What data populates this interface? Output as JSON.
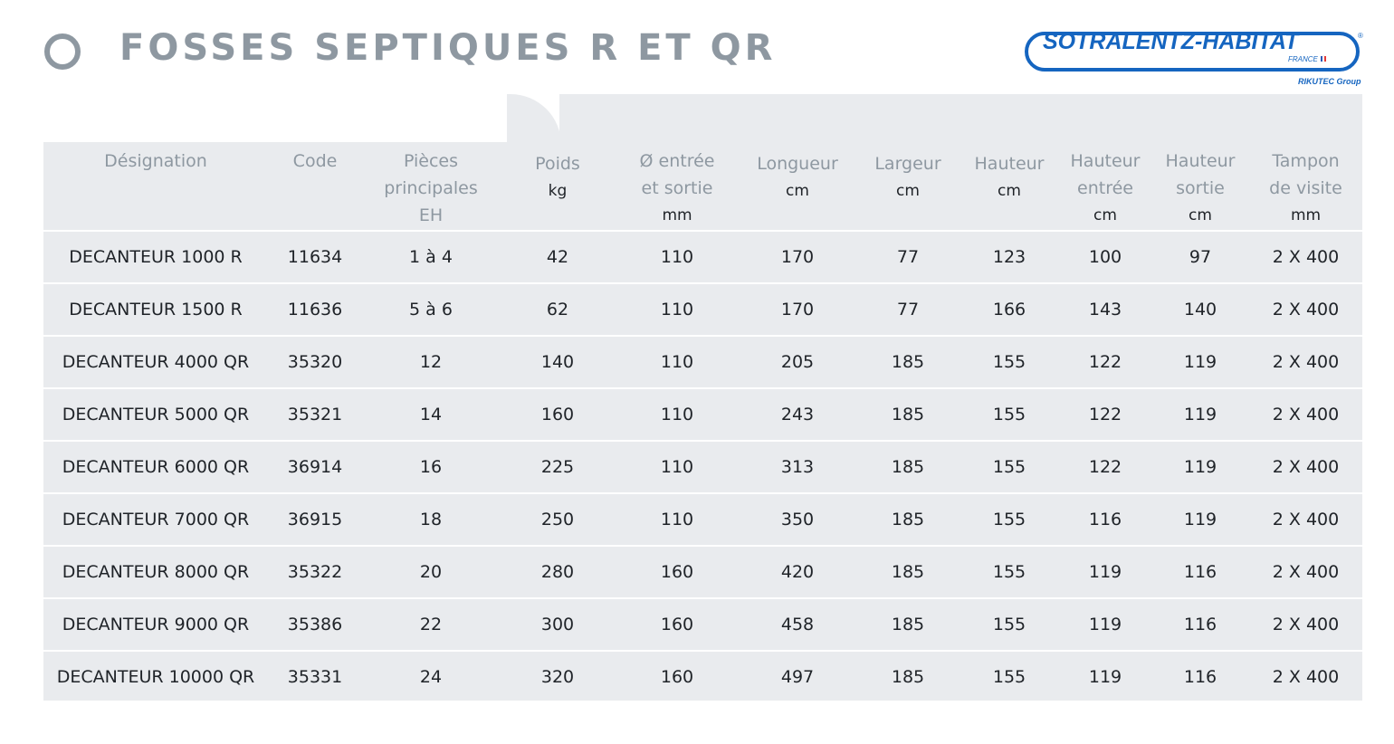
{
  "header": {
    "title": "FOSSES SEPTIQUES R ET QR",
    "logo": {
      "brand": "SOTRALENTZ-HABITAT",
      "registered": "®",
      "country": "FRANCE",
      "group": "RIKUTEC Group",
      "brand_color": "#1565c0"
    }
  },
  "colors": {
    "header_gray": "#8e98a1",
    "table_bg": "#e9ebee",
    "text": "#1f2328"
  },
  "table": {
    "columns": [
      {
        "label": "Désignation",
        "unit": ""
      },
      {
        "label": "Code",
        "unit": ""
      },
      {
        "label": "Pièces principales EH",
        "unit": ""
      },
      {
        "label": "Poids",
        "unit": "kg"
      },
      {
        "label": "Ø entrée et sortie",
        "unit": "mm"
      },
      {
        "label": "Longueur",
        "unit": "cm"
      },
      {
        "label": "Largeur",
        "unit": "cm"
      },
      {
        "label": "Hauteur",
        "unit": "cm"
      },
      {
        "label": "Hauteur entrée",
        "unit": "cm"
      },
      {
        "label": "Hauteur sortie",
        "unit": "cm"
      },
      {
        "label": "Tampon de visite",
        "unit": "mm"
      }
    ],
    "rows": [
      [
        "DECANTEUR 1000 R",
        "11634",
        "1 à 4",
        "42",
        "110",
        "170",
        "77",
        "123",
        "100",
        "97",
        "2 X 400"
      ],
      [
        "DECANTEUR 1500 R",
        "11636",
        "5 à 6",
        "62",
        "110",
        "170",
        "77",
        "166",
        "143",
        "140",
        "2 X 400"
      ],
      [
        "DECANTEUR 4000 QR",
        "35320",
        "12",
        "140",
        "110",
        "205",
        "185",
        "155",
        "122",
        "119",
        "2 X 400"
      ],
      [
        "DECANTEUR 5000 QR",
        "35321",
        "14",
        "160",
        "110",
        "243",
        "185",
        "155",
        "122",
        "119",
        "2 X 400"
      ],
      [
        "DECANTEUR 6000 QR",
        "36914",
        "16",
        "225",
        "110",
        "313",
        "185",
        "155",
        "122",
        "119",
        "2 X 400"
      ],
      [
        "DECANTEUR 7000 QR",
        "36915",
        "18",
        "250",
        "110",
        "350",
        "185",
        "155",
        "116",
        "119",
        "2 X 400"
      ],
      [
        "DECANTEUR 8000 QR",
        "35322",
        "20",
        "280",
        "160",
        "420",
        "185",
        "155",
        "119",
        "116",
        "2 X 400"
      ],
      [
        "DECANTEUR 9000 QR",
        "35386",
        "22",
        "300",
        "160",
        "458",
        "185",
        "155",
        "119",
        "116",
        "2 X 400"
      ],
      [
        "DECANTEUR 10000 QR",
        "35331",
        "24",
        "320",
        "160",
        "497",
        "185",
        "155",
        "119",
        "116",
        "2 X 400"
      ]
    ]
  }
}
